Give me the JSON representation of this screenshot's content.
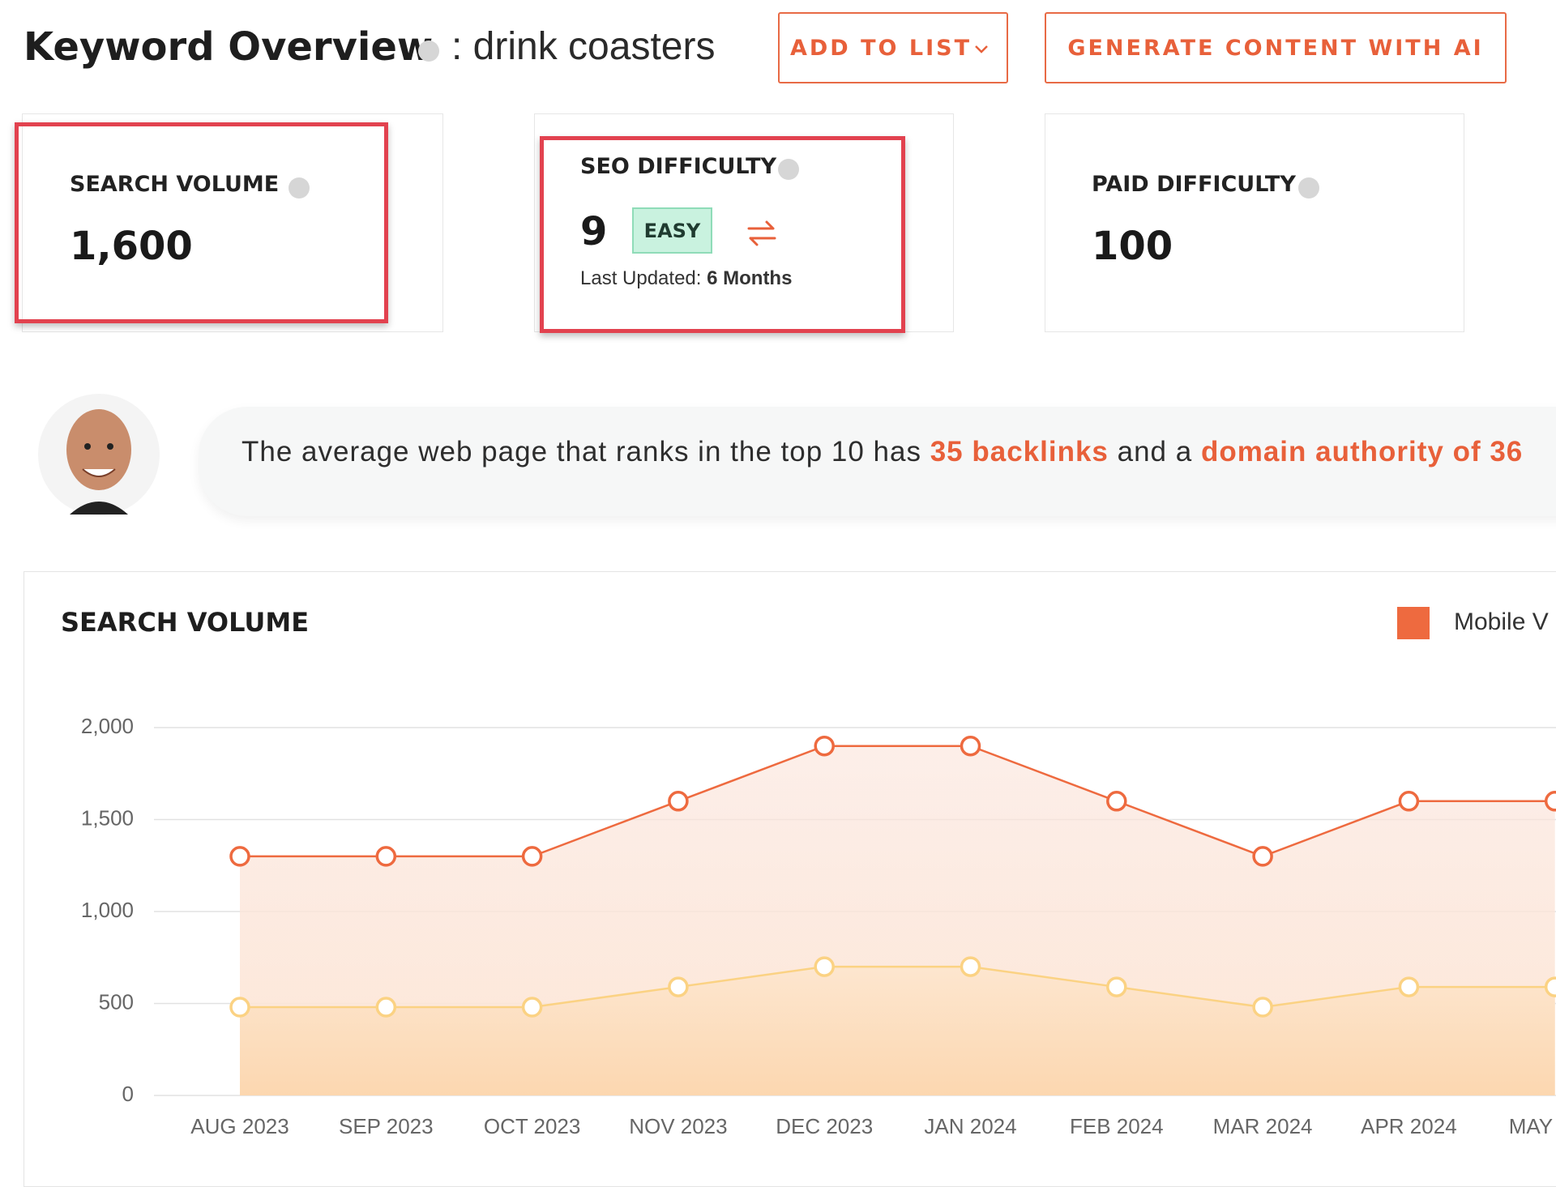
{
  "header": {
    "title": "Keyword Overview",
    "keyword": ": drink coasters",
    "buttons": [
      "ADD TO LIST",
      "GENERATE CONTENT WITH AI"
    ]
  },
  "cards": [
    {
      "label": "SEARCH VOLUME",
      "value": "1,600"
    },
    {
      "label": "SEO DIFFICULTY",
      "value": "9",
      "badge": "EASY",
      "updated_label": "Last Updated:",
      "updated_value": "6 Months"
    },
    {
      "label": "PAID DIFFICULTY",
      "value": "100"
    }
  ],
  "tip": {
    "text": "The average web page that ranks in the top 10 has ",
    "backlinks": "35 backlinks",
    "middle": " and a ",
    "authority": "domain authority of 36"
  },
  "chart_data": {
    "type": "line",
    "title": "SEARCH VOLUME",
    "categories": [
      "AUG 2023",
      "SEP 2023",
      "OCT 2023",
      "NOV 2023",
      "DEC 2023",
      "JAN 2024",
      "FEB 2024",
      "MAR 2024",
      "APR 2024",
      "MAY"
    ],
    "series": [
      {
        "name": "Mobile V",
        "color": "#ee6a3f",
        "values": [
          1300,
          1300,
          1300,
          1600,
          1900,
          1900,
          1600,
          1300,
          1600,
          1600
        ]
      },
      {
        "color": "#fbd283",
        "values": [
          480,
          480,
          480,
          590,
          700,
          700,
          590,
          480,
          590,
          590
        ]
      }
    ],
    "ylim": [
      0,
      2000
    ],
    "yticks": [
      0,
      500,
      {
        "value": 1000,
        "label": "1,000"
      },
      {
        "value": 1500,
        "label": "1,500"
      },
      {
        "value": 2000,
        "label": "2,000"
      }
    ],
    "grid": true,
    "legend": "top-right"
  }
}
